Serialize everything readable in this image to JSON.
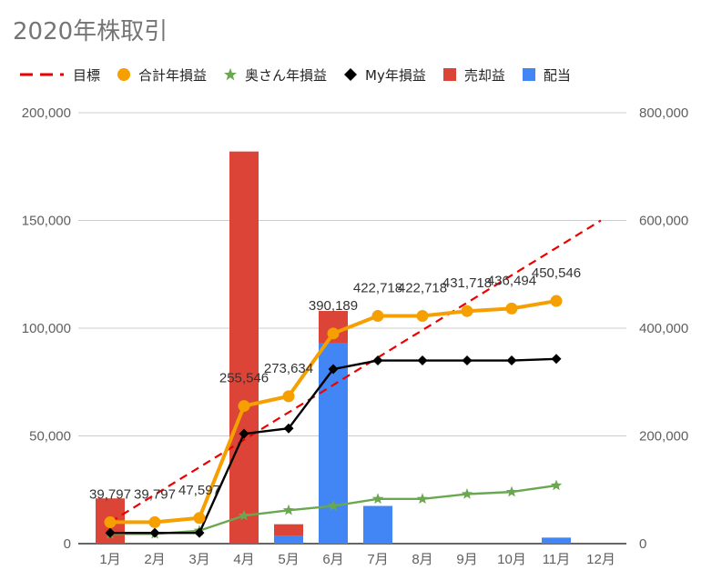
{
  "chart_data": {
    "type": "bar+line",
    "title": "2020年株取引",
    "categories": [
      "1月",
      "2月",
      "3月",
      "4月",
      "5月",
      "6月",
      "7月",
      "8月",
      "9月",
      "10月",
      "11月",
      "12月"
    ],
    "left_axis": {
      "min": 0,
      "max": 200000,
      "ticks": [
        0,
        50000,
        100000,
        150000,
        200000
      ],
      "tick_labels": [
        "0",
        "50,000",
        "100,000",
        "150,000",
        "200,000"
      ]
    },
    "right_axis": {
      "min": 0,
      "max": 800000,
      "ticks": [
        0,
        200000,
        400000,
        600000,
        800000
      ],
      "tick_labels": [
        "0",
        "200,000",
        "400,000",
        "600,000",
        "800,000"
      ]
    },
    "grid": true,
    "legend_position": "top",
    "series": [
      {
        "name": "目標",
        "type": "line",
        "style": "dashed",
        "axis": "right",
        "color": "#ee0000",
        "x_start": 0,
        "x_end": 11,
        "y_start": 40000,
        "y_end": 600000
      },
      {
        "name": "合計年損益",
        "type": "line",
        "marker": "circle",
        "axis": "right",
        "color": "#f59f00",
        "values": [
          39797,
          39797,
          47597,
          255546,
          273634,
          390189,
          422718,
          422718,
          431718,
          436494,
          450546,
          null
        ],
        "labels": [
          "39,797",
          "39,797",
          "47,597",
          "255,546",
          "273,634",
          "390,189",
          "422,718",
          "422,718",
          "431,718",
          "436,494",
          "450,546",
          ""
        ]
      },
      {
        "name": "奥さん年損益",
        "type": "line",
        "marker": "star",
        "axis": "right",
        "color": "#6aa84f",
        "values": [
          18000,
          18000,
          24000,
          52000,
          62000,
          70000,
          83000,
          83000,
          92000,
          96000,
          108000,
          null
        ]
      },
      {
        "name": "My年損益",
        "type": "line",
        "marker": "diamond",
        "axis": "right",
        "color": "#000000",
        "values": [
          20000,
          20000,
          20000,
          204000,
          214000,
          324000,
          340000,
          340000,
          340000,
          340000,
          343000,
          null
        ]
      },
      {
        "name": "売却益",
        "type": "bar",
        "axis": "left",
        "color": "#db4437",
        "stacked_with": "配当",
        "values": [
          21000,
          0,
          0,
          182000,
          5500,
          15000,
          0,
          0,
          0,
          0,
          0,
          0
        ]
      },
      {
        "name": "配当",
        "type": "bar",
        "axis": "left",
        "color": "#4285f4",
        "stacked_with": "売却益",
        "values": [
          0,
          0,
          0,
          0,
          3500,
          93000,
          17500,
          0,
          0,
          0,
          2800,
          0
        ]
      }
    ]
  }
}
